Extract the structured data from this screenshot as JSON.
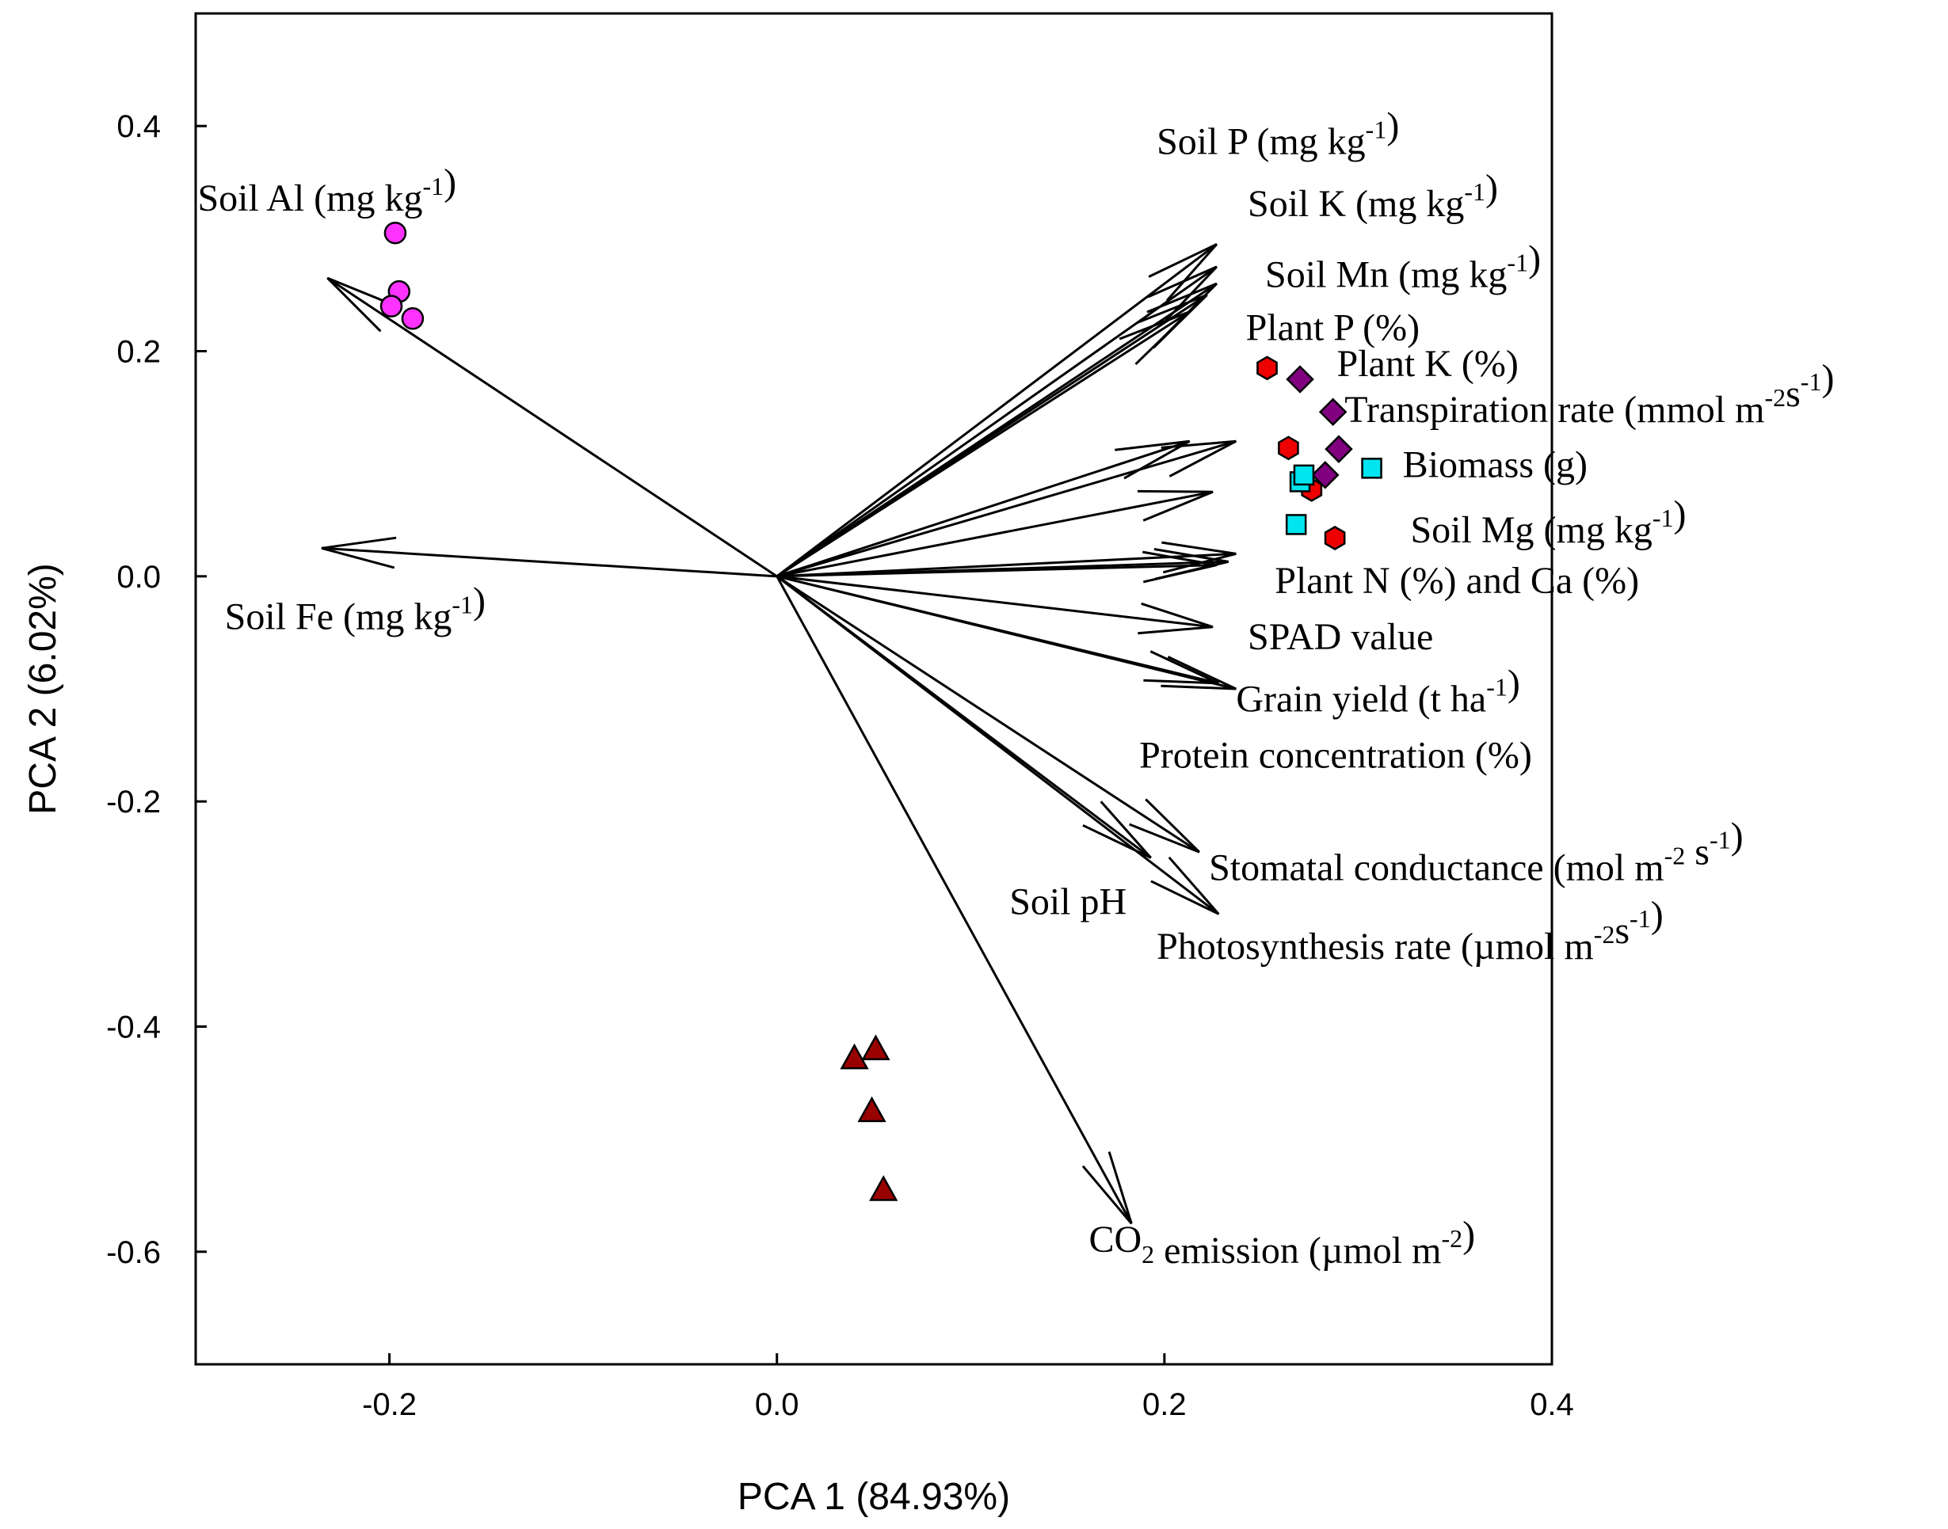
{
  "chart_data": {
    "type": "scatter",
    "subtype": "pca-biplot",
    "xlabel": "PCA 1 (84.93%)",
    "ylabel": "PCA 2 (6.02%)",
    "xlim": [
      -0.3,
      0.4
    ],
    "ylim": [
      -0.7,
      0.5
    ],
    "xticks": [
      -0.2,
      0.0,
      0.2,
      0.4
    ],
    "xtick_labels": [
      "-0.2",
      "0.0",
      "0.2",
      "0.4"
    ],
    "yticks": [
      -0.6,
      -0.4,
      -0.2,
      0.0,
      0.2,
      0.4
    ],
    "ytick_labels": [
      "-0.6",
      "-0.4",
      "-0.2",
      "0.0",
      "0.2",
      "0.4"
    ],
    "grid": false,
    "loadings": [
      {
        "x": -0.232,
        "y": 0.265
      },
      {
        "x": -0.235,
        "y": 0.025
      },
      {
        "x": 0.227,
        "y": 0.295
      },
      {
        "x": 0.227,
        "y": 0.275
      },
      {
        "x": 0.227,
        "y": 0.26
      },
      {
        "x": 0.222,
        "y": 0.25
      },
      {
        "x": 0.213,
        "y": 0.235
      },
      {
        "x": 0.213,
        "y": 0.12
      },
      {
        "x": 0.237,
        "y": 0.12
      },
      {
        "x": 0.225,
        "y": 0.075
      },
      {
        "x": 0.237,
        "y": 0.02
      },
      {
        "x": 0.233,
        "y": 0.013
      },
      {
        "x": 0.227,
        "y": 0.01
      },
      {
        "x": 0.225,
        "y": -0.045
      },
      {
        "x": 0.237,
        "y": -0.1
      },
      {
        "x": 0.228,
        "y": -0.095
      },
      {
        "x": 0.218,
        "y": -0.245
      },
      {
        "x": 0.193,
        "y": -0.25
      },
      {
        "x": 0.228,
        "y": -0.3
      },
      {
        "x": 0.183,
        "y": -0.575
      }
    ],
    "variable_labels": [
      {
        "text": "Soil Al  (mg kg",
        "sup": "-1",
        "tail": ")",
        "x": -0.299,
        "y": 0.325
      },
      {
        "text": "Soil Fe  (mg kg",
        "sup": "-1",
        "tail": ")",
        "x": -0.285,
        "y": -0.047
      },
      {
        "text": "Soil P (mg kg",
        "sup": "-1",
        "tail": ")",
        "x": 0.196,
        "y": 0.375
      },
      {
        "text": "Soil K (mg kg",
        "sup": "-1",
        "tail": ")",
        "x": 0.243,
        "y": 0.32
      },
      {
        "text": "Soil Mn  (mg kg",
        "sup": "-1",
        "tail": ")",
        "x": 0.252,
        "y": 0.257
      },
      {
        "text": "Plant P (%)",
        "x": 0.242,
        "y": 0.21
      },
      {
        "text": "Plant K (%)",
        "x": 0.289,
        "y": 0.178
      },
      {
        "text": "Transpiration rate (mmol m",
        "sup": "-2",
        "mid": "s",
        "sup2": "-1",
        "tail": ")",
        "x": 0.293,
        "y": 0.137
      },
      {
        "text": "Biomass (g)",
        "x": 0.323,
        "y": 0.088
      },
      {
        "text": "Soil Mg  (mg kg",
        "sup": "-1",
        "tail": ")",
        "x": 0.327,
        "y": 0.03
      },
      {
        "text": "Plant N (%) and Ca (%)",
        "x": 0.257,
        "y": -0.015
      },
      {
        "text": "SPAD value",
        "x": 0.243,
        "y": -0.065
      },
      {
        "text": "Grain yield (t ha",
        "sup": "-1",
        "tail": ")",
        "x": 0.237,
        "y": -0.12
      },
      {
        "text": "Protein concentration (%)",
        "x": 0.187,
        "y": -0.17
      },
      {
        "text": "Stomatal conductance (mol m",
        "sup": "-2",
        "mid": " s",
        "sup2": "-1",
        "tail": ")",
        "x": 0.223,
        "y": -0.27
      },
      {
        "text": "Soil pH",
        "x": 0.12,
        "y": -0.3
      },
      {
        "text": "Photosynthesis rate (µmol m",
        "sup": "-2",
        "mid": "s",
        "sup2": "-1",
        "tail": ")",
        "x": 0.196,
        "y": -0.34
      },
      {
        "text": "CO",
        "sub": "2",
        "mid": " emission (µmol m",
        "sup2": "-2",
        "tail": ")",
        "x": 0.161,
        "y": -0.6
      }
    ],
    "series": [
      {
        "name": "group-magenta-circles",
        "marker": "circle",
        "color": "#ff33ff",
        "points": [
          [
            -0.197,
            0.305
          ],
          [
            -0.195,
            0.253
          ],
          [
            -0.199,
            0.24
          ],
          [
            -0.188,
            0.229
          ]
        ]
      },
      {
        "name": "group-red-hexagons",
        "marker": "hexagon",
        "color": "#ee0000",
        "points": [
          [
            0.253,
            0.185
          ],
          [
            0.264,
            0.114
          ],
          [
            0.276,
            0.077
          ],
          [
            0.288,
            0.034
          ]
        ]
      },
      {
        "name": "group-purple-diamonds",
        "marker": "diamond",
        "color": "#800080",
        "points": [
          [
            0.27,
            0.175
          ],
          [
            0.287,
            0.146
          ],
          [
            0.29,
            0.113
          ],
          [
            0.283,
            0.09
          ]
        ]
      },
      {
        "name": "group-cyan-squares",
        "marker": "square",
        "color": "#00e5ee",
        "points": [
          [
            0.27,
            0.084
          ],
          [
            0.272,
            0.09
          ],
          [
            0.307,
            0.096
          ],
          [
            0.268,
            0.046
          ]
        ]
      },
      {
        "name": "group-darkred-triangles",
        "marker": "triangle",
        "color": "#990000",
        "points": [
          [
            0.04,
            -0.428
          ],
          [
            0.051,
            -0.42
          ],
          [
            0.049,
            -0.475
          ],
          [
            0.055,
            -0.545
          ]
        ]
      }
    ]
  }
}
